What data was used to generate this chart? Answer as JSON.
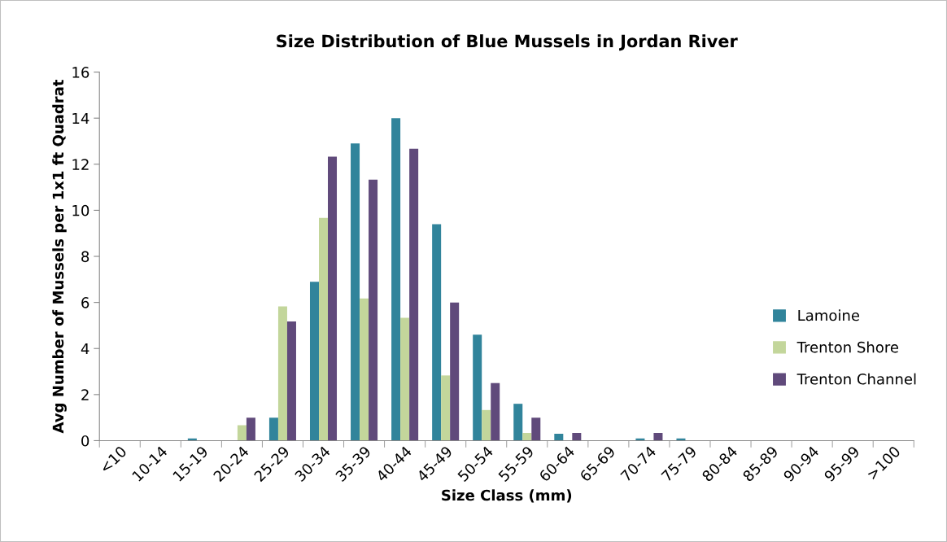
{
  "chart_data": {
    "type": "bar",
    "title": "Size Distribution of Blue Mussels in Jordan River",
    "xlabel": "Size Class (mm)",
    "ylabel": "Avg Number of Mussels per 1x1 ft Quadrat",
    "categories": [
      "<10",
      "10-14",
      "15-19",
      "20-24",
      "25-29",
      "30-34",
      "35-39",
      "40-44",
      "45-49",
      "50-54",
      "55-59",
      "60-64",
      "65-69",
      "70-74",
      "75-79",
      "80-84",
      "85-89",
      "90-94",
      "95-99",
      ">100"
    ],
    "series": [
      {
        "name": "Lamoine",
        "color": "#31849b",
        "values": [
          0,
          0,
          0.1,
          0,
          1,
          6.9,
          12.9,
          14,
          9.4,
          4.6,
          1.6,
          0.3,
          0,
          0.1,
          0.1,
          0,
          0,
          0,
          0,
          0
        ]
      },
      {
        "name": "Trenton Shore",
        "color": "#c3d69b",
        "values": [
          0,
          0,
          0,
          0.67,
          5.83,
          9.67,
          6.17,
          5.33,
          2.83,
          1.33,
          0.33,
          0,
          0,
          0,
          0,
          0,
          0,
          0,
          0,
          0
        ]
      },
      {
        "name": "Trenton Channel",
        "color": "#604a7b",
        "values": [
          0,
          0,
          0,
          1,
          5.17,
          12.33,
          11.33,
          12.67,
          6,
          2.5,
          1,
          0.33,
          0,
          0.33,
          0,
          0,
          0,
          0,
          0,
          0
        ]
      }
    ],
    "ylim": [
      0,
      16
    ],
    "yticks": [
      0,
      2,
      4,
      6,
      8,
      10,
      12,
      14,
      16
    ],
    "grid": false,
    "legend": "right"
  }
}
